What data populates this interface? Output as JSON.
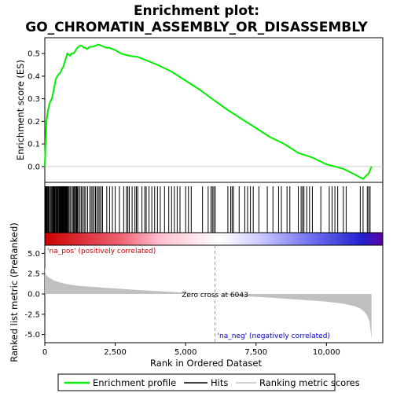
{
  "chart_data": {
    "type": "line",
    "title_lines": [
      "Enrichment plot:",
      "GO_CHROMATIN_ASSEMBLY_OR_DISASSEMBLY"
    ],
    "top_panel": {
      "ylabel": "Enrichment score (ES)",
      "ylim": [
        -0.07,
        0.57
      ],
      "yticks": [
        0.0,
        0.1,
        0.2,
        0.3,
        0.4,
        0.5
      ],
      "ytick_labels": [
        "0.0",
        "0.1",
        "0.2",
        "0.3",
        "0.4",
        "0.5"
      ],
      "series": [
        {
          "name": "Enrichment profile",
          "color": "#00ee00",
          "x": [
            0,
            30,
            60,
            100,
            150,
            200,
            250,
            300,
            350,
            400,
            450,
            500,
            550,
            600,
            650,
            700,
            750,
            800,
            850,
            900,
            950,
            1000,
            1050,
            1100,
            1150,
            1200,
            1250,
            1300,
            1350,
            1400,
            1450,
            1500,
            1600,
            1700,
            1800,
            1900,
            2000,
            2100,
            2200,
            2300,
            2400,
            2500,
            2700,
            3000,
            3300,
            3600,
            4000,
            4500,
            5000,
            5500,
            6043,
            6500,
            7000,
            7500,
            8000,
            8500,
            9000,
            9500,
            10000,
            10300,
            10600,
            11000,
            11300,
            11500,
            11600
          ],
          "y": [
            0.0,
            0.12,
            0.2,
            0.24,
            0.27,
            0.29,
            0.3,
            0.33,
            0.36,
            0.39,
            0.4,
            0.41,
            0.415,
            0.43,
            0.44,
            0.46,
            0.48,
            0.5,
            0.495,
            0.49,
            0.5,
            0.5,
            0.505,
            0.515,
            0.525,
            0.53,
            0.535,
            0.535,
            0.53,
            0.525,
            0.525,
            0.52,
            0.53,
            0.53,
            0.535,
            0.54,
            0.535,
            0.53,
            0.525,
            0.525,
            0.52,
            0.515,
            0.5,
            0.49,
            0.485,
            0.47,
            0.45,
            0.42,
            0.38,
            0.34,
            0.29,
            0.25,
            0.21,
            0.17,
            0.13,
            0.1,
            0.06,
            0.04,
            0.01,
            0.0,
            -0.01,
            -0.035,
            -0.055,
            -0.03,
            0.0
          ]
        }
      ]
    },
    "hits_panel": {
      "hit_positions": [
        20,
        40,
        60,
        80,
        110,
        130,
        160,
        200,
        230,
        260,
        290,
        310,
        330,
        350,
        370,
        400,
        420,
        450,
        470,
        500,
        520,
        540,
        560,
        580,
        600,
        620,
        640,
        660,
        680,
        700,
        720,
        740,
        760,
        780,
        800,
        830,
        860,
        900,
        950,
        1000,
        1030,
        1060,
        1100,
        1130,
        1160,
        1200,
        1250,
        1300,
        1350,
        1400,
        1450,
        1520,
        1600,
        1650,
        1700,
        1750,
        1800,
        1850,
        1900,
        1950,
        2000,
        2050,
        2200,
        2300,
        2400,
        2500,
        2650,
        2800,
        2900,
        2950,
        3000,
        3100,
        3200,
        3250,
        3300,
        3450,
        3550,
        3600,
        3700,
        3800,
        3900,
        4000,
        4100,
        4250,
        4400,
        4500,
        4600,
        4700,
        4800,
        5000,
        5100,
        5200,
        5600,
        5800,
        5900,
        5950,
        6000,
        6050,
        6500,
        6600,
        6650,
        6700,
        6900,
        7100,
        7200,
        7300,
        7400,
        7600,
        7900,
        8100,
        8300,
        8400,
        8600,
        8700,
        9000,
        9100,
        9150,
        9200,
        9300,
        9400,
        9500,
        9800,
        10100,
        10200,
        10300,
        10400,
        10600,
        10700,
        11200,
        11300,
        11450,
        11500,
        11550
      ]
    },
    "rank_panel": {
      "ylabel": "Ranked list metric (PreRanked)",
      "ylim": [
        -6.0,
        6.0
      ],
      "yticks": [
        5.0,
        2.5,
        0.0,
        -2.5,
        -5.0
      ],
      "ytick_labels": [
        "5.0",
        "2.5",
        "0.0",
        "-2.5",
        "-5.0"
      ],
      "x": [
        0,
        30,
        80,
        150,
        300,
        500,
        800,
        1200,
        2000,
        3000,
        4000,
        5000,
        6043,
        7000,
        8000,
        9000,
        10000,
        10600,
        11000,
        11200,
        11350,
        11450,
        11520,
        11560,
        11600
      ],
      "y": [
        3.3,
        2.5,
        2.2,
        2.0,
        1.7,
        1.45,
        1.2,
        1.0,
        0.8,
        0.55,
        0.35,
        0.15,
        0.0,
        -0.25,
        -0.45,
        -0.7,
        -0.95,
        -1.2,
        -1.5,
        -1.8,
        -2.2,
        -2.7,
        -3.3,
        -4.3,
        -5.6
      ],
      "fill_color": "#c0c0c0",
      "zero_cross_rank": 6043,
      "annotations": {
        "zero_cross": "Zero cross at 6043",
        "pos_label": "'na_pos' (positively correlated)",
        "neg_label": "'na_neg' (negatively correlated)",
        "pos_color": "#cc0000",
        "neg_color": "#0000cc"
      }
    },
    "xlabel": "Rank in Ordered Dataset",
    "xlim": [
      0,
      12000
    ],
    "xticks": [
      0,
      2500,
      5000,
      7500,
      10000
    ],
    "xtick_labels": [
      "0",
      "2,500",
      "5,000",
      "7,500",
      "10,000"
    ],
    "dataset_size": 11600,
    "legend": {
      "placement": "bottom",
      "items": [
        {
          "label": "Enrichment profile",
          "color": "#00ee00"
        },
        {
          "label": "Hits",
          "color": "#000000"
        },
        {
          "label": "Ranking metric scores",
          "color": "#c0c0c0"
        }
      ]
    },
    "gradient_stops": [
      "#cc0000",
      "#ffc0c8",
      "#ffffff",
      "#b0b0ff",
      "#1010cc",
      "#6000a0"
    ]
  }
}
